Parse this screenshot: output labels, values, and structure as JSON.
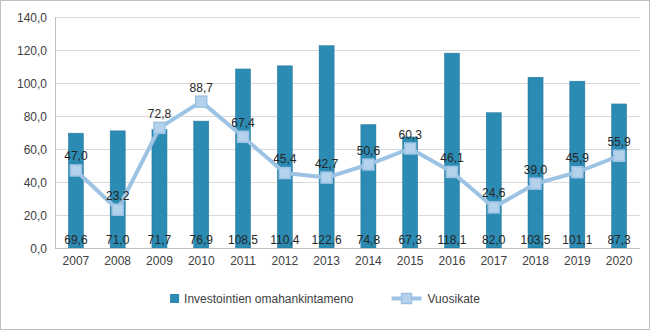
{
  "chart_data": {
    "type": "bar",
    "categories": [
      "2007",
      "2008",
      "2009",
      "2010",
      "2011",
      "2012",
      "2013",
      "2014",
      "2015",
      "2016",
      "2017",
      "2018",
      "2019",
      "2020"
    ],
    "series": [
      {
        "name": "Investointien omahankintameno",
        "type": "bar",
        "color": "#2b8bb3",
        "values": [
          69.6,
          71.0,
          71.7,
          76.9,
          108.5,
          110.4,
          122.6,
          74.8,
          67.3,
          118.1,
          82.0,
          103.5,
          101.1,
          87.3
        ],
        "value_labels": [
          "69,6",
          "71,0",
          "71,7",
          "76,9",
          "108,5",
          "110,4",
          "122,6",
          "74,8",
          "67,3",
          "118,1",
          "82,0",
          "103,5",
          "101,1",
          "87,3"
        ]
      },
      {
        "name": "Vuosikate",
        "type": "line",
        "color": "#9dc3e4",
        "marker": "square",
        "values": [
          47.0,
          23.2,
          72.8,
          88.7,
          67.4,
          45.4,
          42.7,
          50.6,
          60.3,
          46.1,
          24.6,
          39.0,
          45.9,
          55.9
        ],
        "value_labels": [
          "47,0",
          "23,2",
          "72,8",
          "88,7",
          "67,4",
          "45,4",
          "42,7",
          "50,6",
          "60,3",
          "46,1",
          "24,6",
          "39,0",
          "45,9",
          "55,9"
        ]
      }
    ],
    "ylim": [
      0,
      140
    ],
    "yticks": [
      {
        "value": 0,
        "label": "0,0"
      },
      {
        "value": 20,
        "label": "20,0"
      },
      {
        "value": 40,
        "label": "40,0"
      },
      {
        "value": 60,
        "label": "60,0"
      },
      {
        "value": 80,
        "label": "80,0"
      },
      {
        "value": 100,
        "label": "100,0"
      },
      {
        "value": 120,
        "label": "120,0"
      },
      {
        "value": 140,
        "label": "140,0"
      }
    ],
    "grid": true,
    "legend": "bottom",
    "data_labels": true
  }
}
